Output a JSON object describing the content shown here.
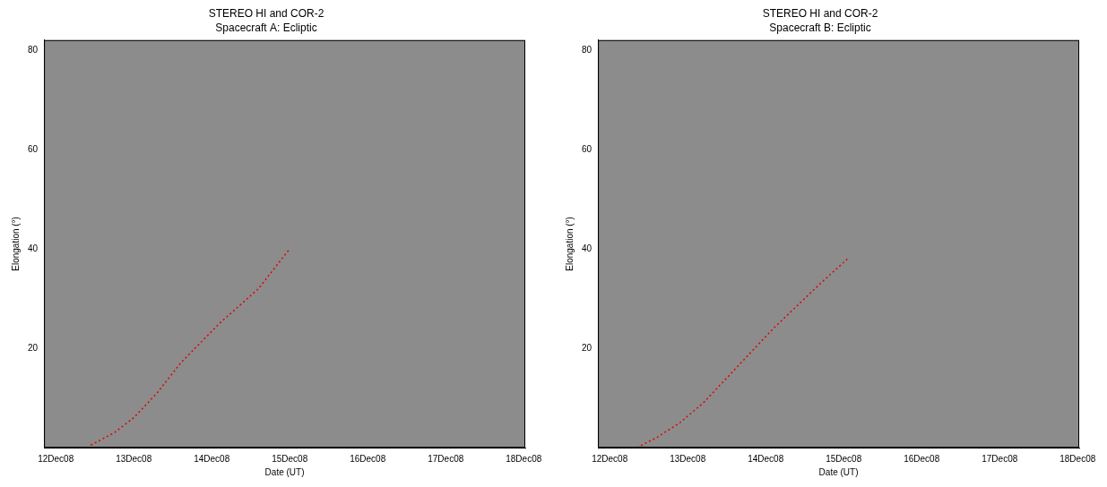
{
  "chart_data": [
    {
      "type": "line",
      "title": "STEREO HI and COR-2",
      "subtitle": "Spacecraft A: Ecliptic",
      "x_label": "Date (UT)",
      "y_label": "Elongation (°)",
      "xlim": [
        11.85,
        18.02
      ],
      "xticks": [
        {
          "value": 12,
          "label": "12Dec08"
        },
        {
          "value": 13,
          "label": "13Dec08"
        },
        {
          "value": 14,
          "label": "14Dec08"
        },
        {
          "value": 15,
          "label": "15Dec08"
        },
        {
          "value": 16,
          "label": "16Dec08"
        },
        {
          "value": 17,
          "label": "17Dec08"
        },
        {
          "value": 18,
          "label": "18Dec08"
        }
      ],
      "ylim": [
        0,
        82
      ],
      "yticks": [
        20,
        40,
        60,
        80
      ],
      "grid": false,
      "series": [
        {
          "color": "#e00000",
          "line_style": "dotted",
          "marker": "none",
          "x": [
            12.45,
            12.75,
            13.0,
            13.3,
            13.6,
            13.85,
            14.1,
            14.35,
            14.6,
            14.85,
            15.0
          ],
          "values": [
            0.5,
            3,
            6,
            11,
            17,
            21,
            25,
            28.5,
            32,
            37,
            40
          ]
        }
      ]
    },
    {
      "type": "line",
      "title": "STEREO HI and COR-2",
      "subtitle": "Spacecraft B: Ecliptic",
      "x_label": "Date (UT)",
      "y_label": "Elongation (°)",
      "xlim": [
        11.85,
        18.02
      ],
      "xticks": [
        {
          "value": 12,
          "label": "12Dec08"
        },
        {
          "value": 13,
          "label": "13Dec08"
        },
        {
          "value": 14,
          "label": "14Dec08"
        },
        {
          "value": 15,
          "label": "15Dec08"
        },
        {
          "value": 16,
          "label": "16Dec08"
        },
        {
          "value": 17,
          "label": "17Dec08"
        },
        {
          "value": 18,
          "label": "18Dec08"
        }
      ],
      "ylim": [
        0,
        82
      ],
      "yticks": [
        20,
        40,
        60,
        80
      ],
      "grid": false,
      "series": [
        {
          "color": "#e00000",
          "line_style": "dotted",
          "marker": "none",
          "x": [
            12.35,
            12.6,
            12.9,
            13.2,
            13.5,
            13.8,
            14.1,
            14.4,
            14.7,
            15.05
          ],
          "values": [
            0,
            2,
            5,
            9,
            14,
            19,
            24,
            28.5,
            33,
            38
          ]
        }
      ]
    }
  ]
}
